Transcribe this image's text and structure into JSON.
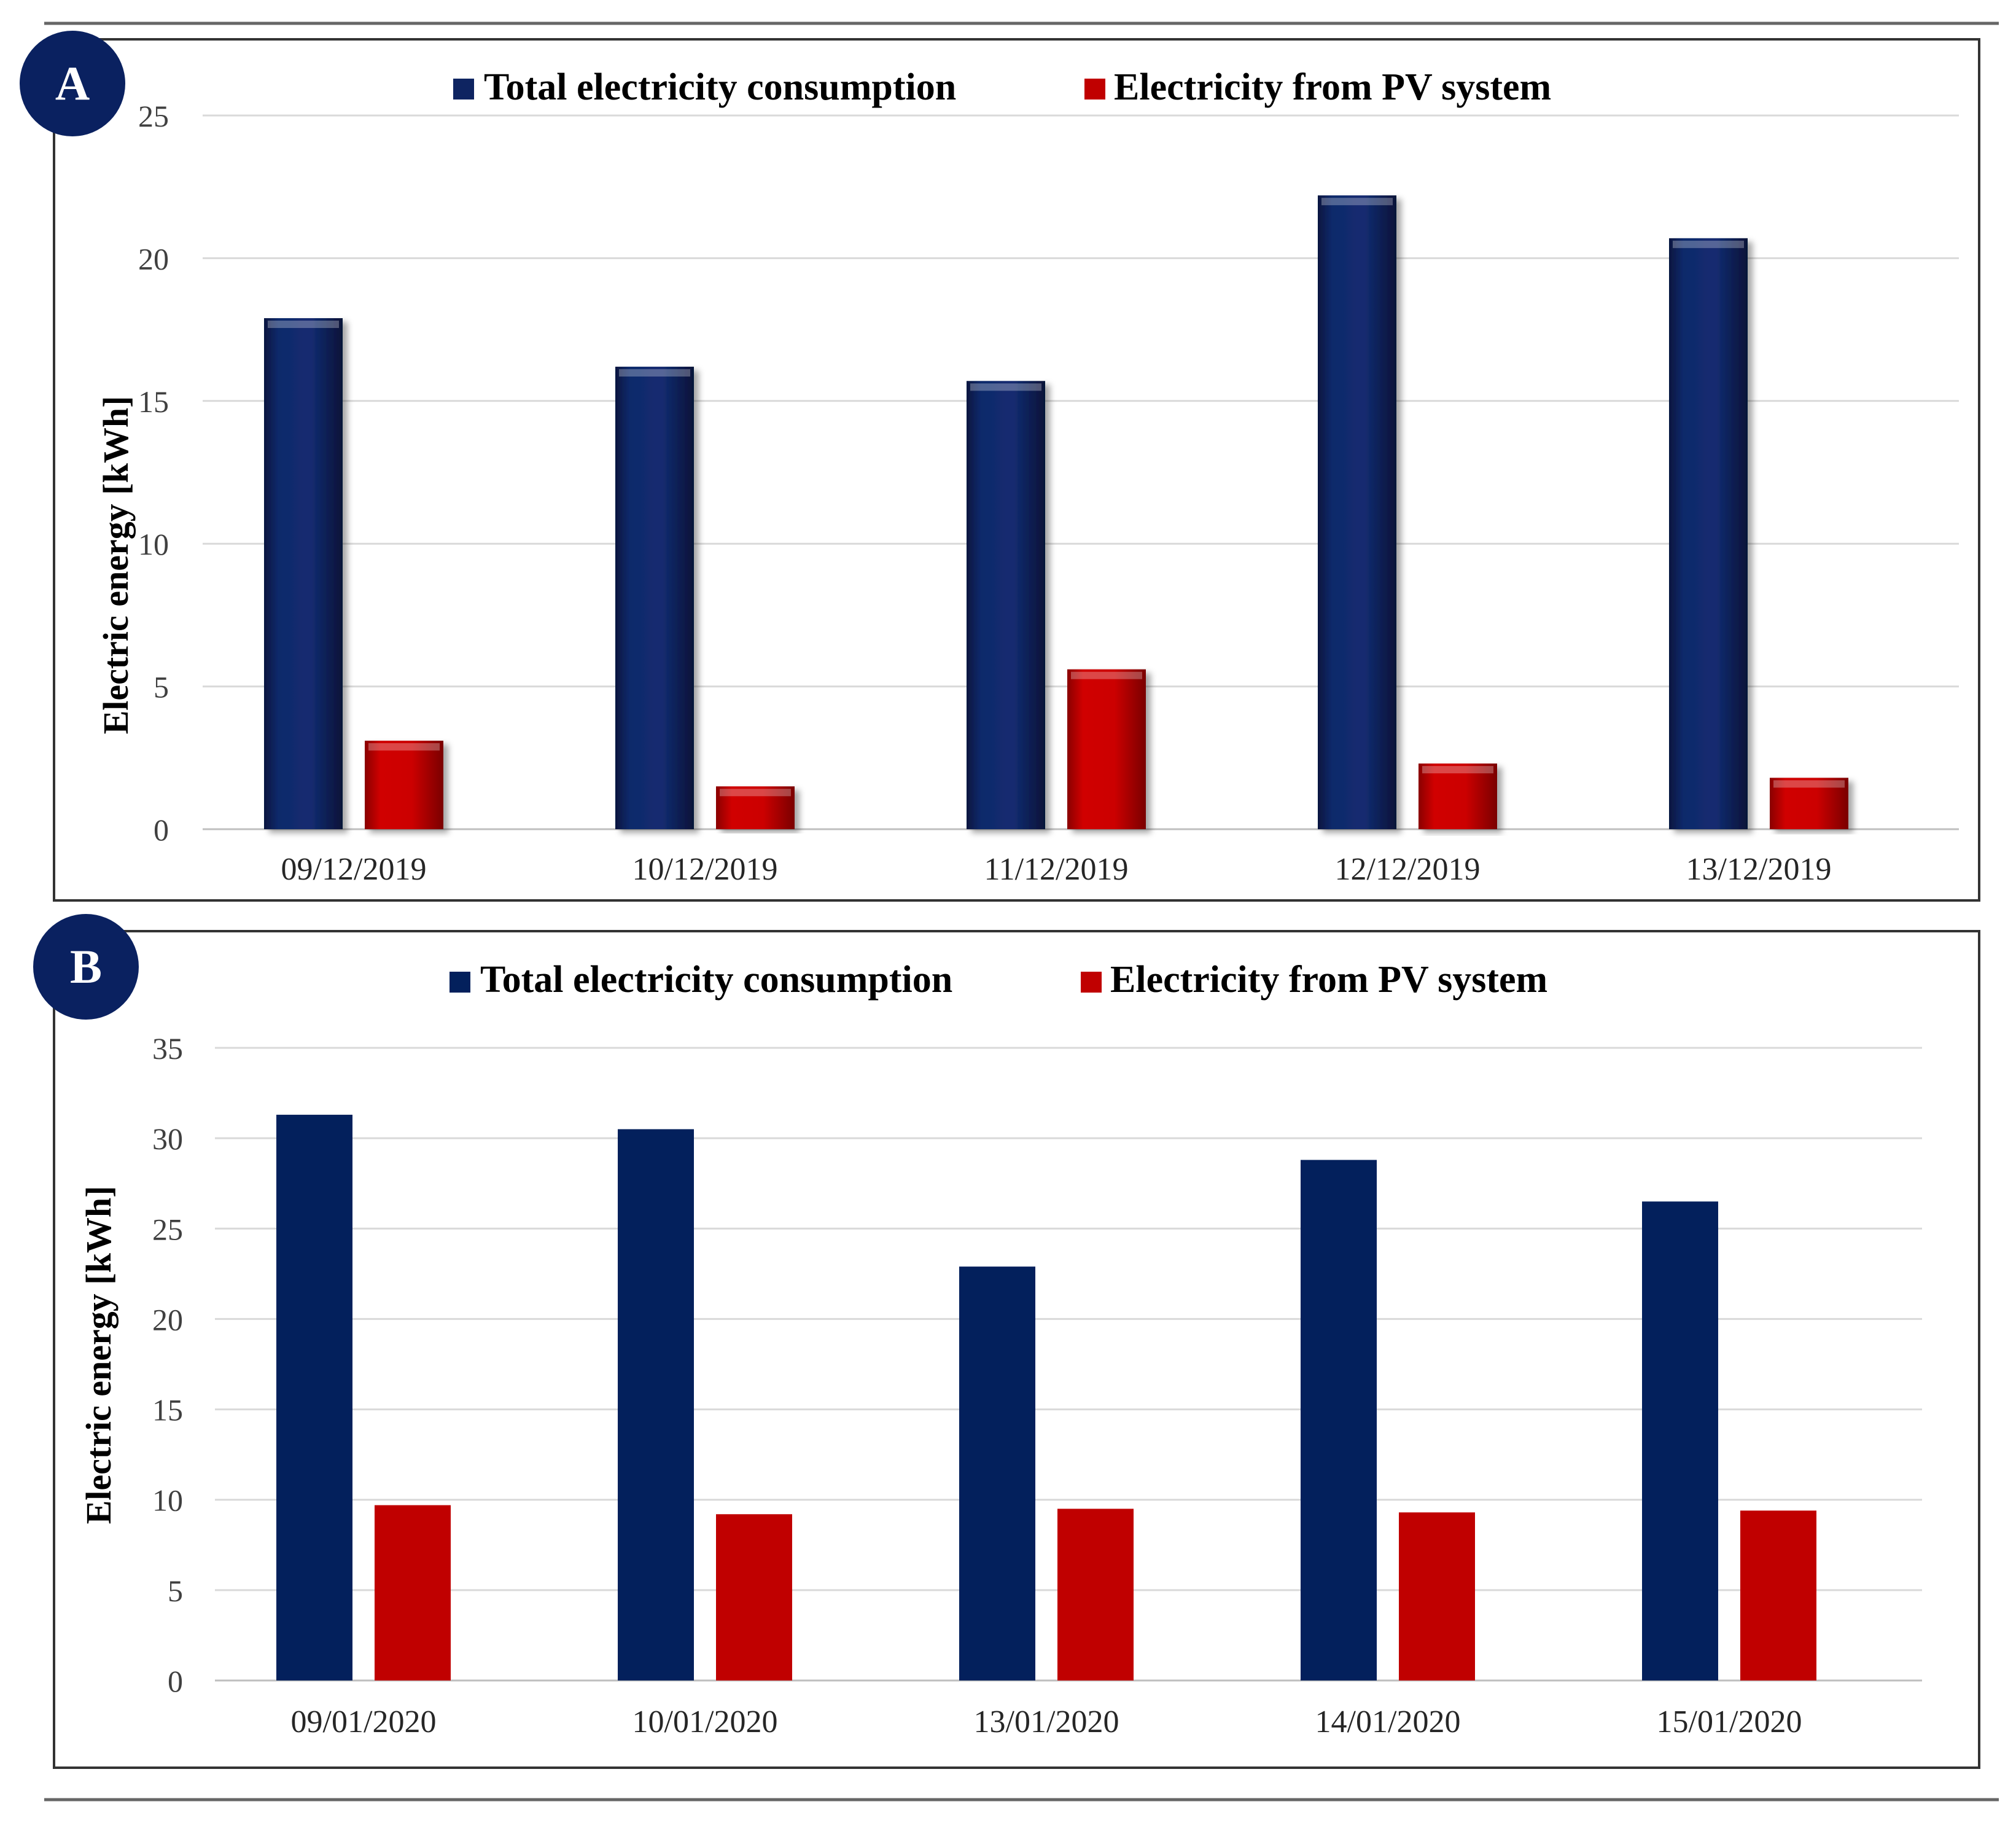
{
  "chart_data": [
    {
      "panel_label": "A",
      "type": "bar",
      "style": "3d-beveled",
      "categories": [
        "09/12/2019",
        "10/12/2019",
        "11/12/2019",
        "12/12/2019",
        "13/12/2019"
      ],
      "series": [
        {
          "name": "Total electricity consumption",
          "color": "#0e2461",
          "values": [
            17.9,
            16.2,
            15.7,
            22.2,
            20.7
          ]
        },
        {
          "name": "Electricity from PV system",
          "color": "#c00000",
          "values": [
            3.1,
            1.5,
            5.6,
            2.3,
            1.8
          ]
        }
      ],
      "xlabel": "",
      "ylabel": "Electric energy  [kWh]",
      "ylim": [
        0,
        25
      ],
      "yticks": [
        0,
        5,
        10,
        15,
        20,
        25
      ],
      "grid": true,
      "legend": "top-center"
    },
    {
      "panel_label": "B",
      "type": "bar",
      "style": "flat",
      "categories": [
        "09/01/2020",
        "10/01/2020",
        "13/01/2020",
        "14/01/2020",
        "15/01/2020"
      ],
      "series": [
        {
          "name": "Total electricity consumption",
          "color": "#03205c",
          "values": [
            31.3,
            30.5,
            22.9,
            28.8,
            26.5
          ]
        },
        {
          "name": "Electricity from PV system",
          "color": "#c00000",
          "values": [
            9.7,
            9.2,
            9.5,
            9.3,
            9.4
          ]
        }
      ],
      "xlabel": "",
      "ylabel": "Electric energy   [kWh]",
      "ylim": [
        0,
        35
      ],
      "yticks": [
        0,
        5,
        10,
        15,
        20,
        25,
        30,
        35
      ],
      "grid": true,
      "legend": "top-center"
    }
  ]
}
